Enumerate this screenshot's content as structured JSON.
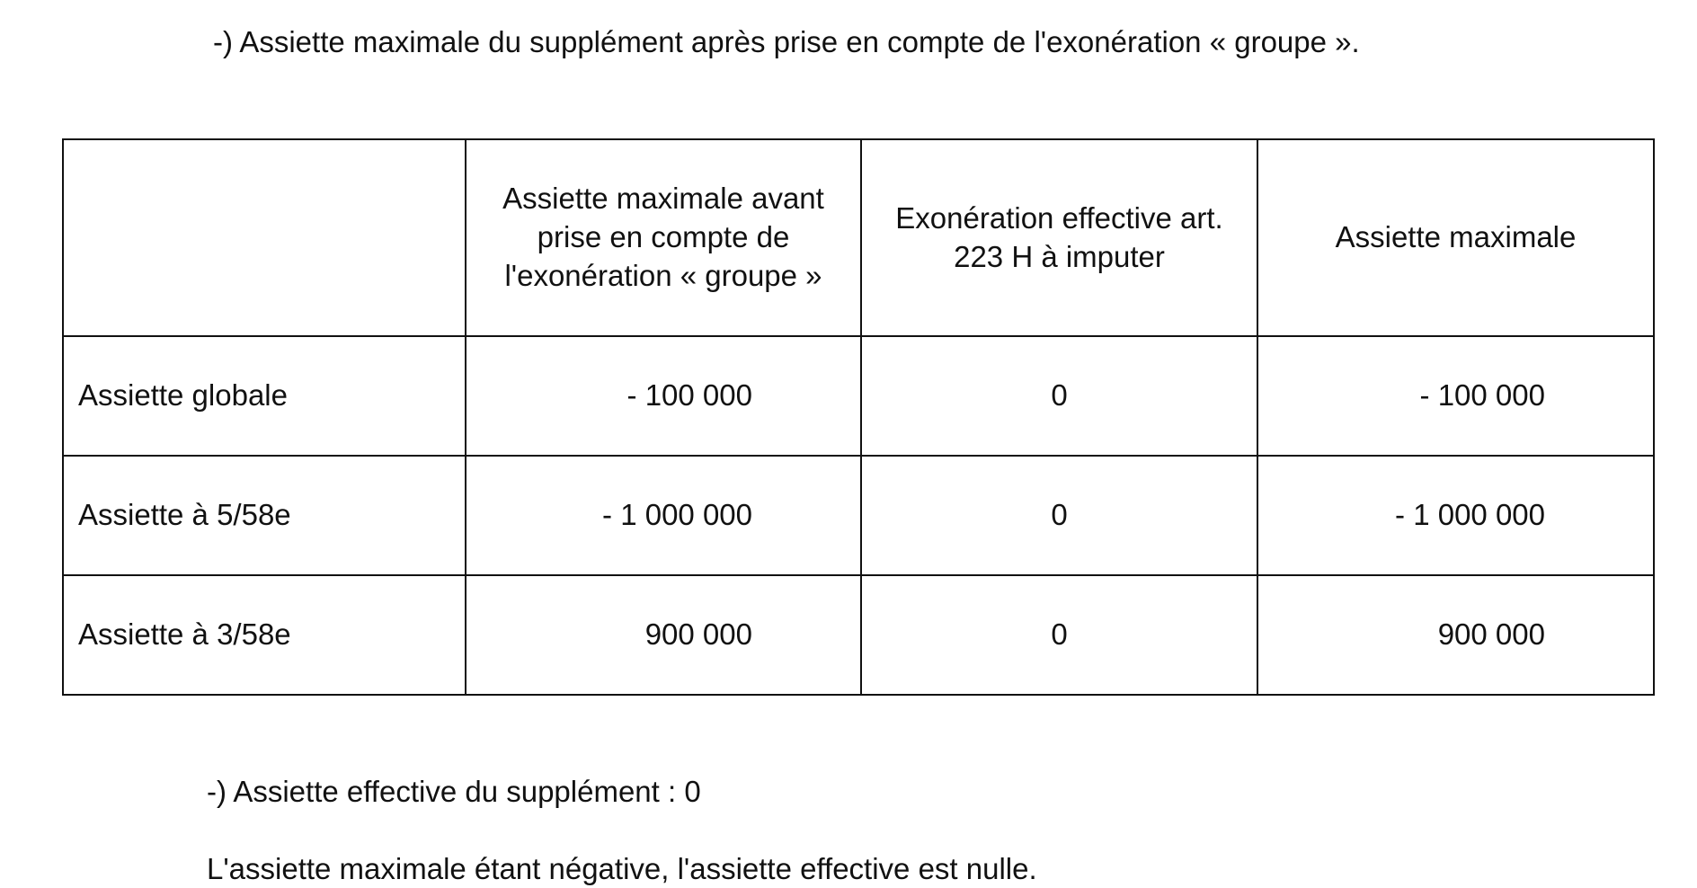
{
  "document": {
    "title": "-) Assiette maximale du supplément après prise en compte de l'exonération « groupe ».",
    "table": {
      "headers": [
        "",
        "Assiette maximale avant prise en compte de l'exonération « groupe »",
        "Exonération effective art. 223 H à imputer",
        "Assiette maximale"
      ],
      "rows": [
        {
          "label": "Assiette globale",
          "before": "- 100 000",
          "exoneration": "0",
          "max": "- 100 000"
        },
        {
          "label": "Assiette à 5/58e",
          "before": "- 1 000 000",
          "exoneration": "0",
          "max": "- 1 000 000"
        },
        {
          "label": "Assiette à 3/58e",
          "before": "900 000",
          "exoneration": "0",
          "max": "900 000"
        }
      ]
    },
    "effective": "-) Assiette effective du supplément : 0",
    "note": "L'assiette maximale étant négative, l'assiette effective est nulle."
  }
}
